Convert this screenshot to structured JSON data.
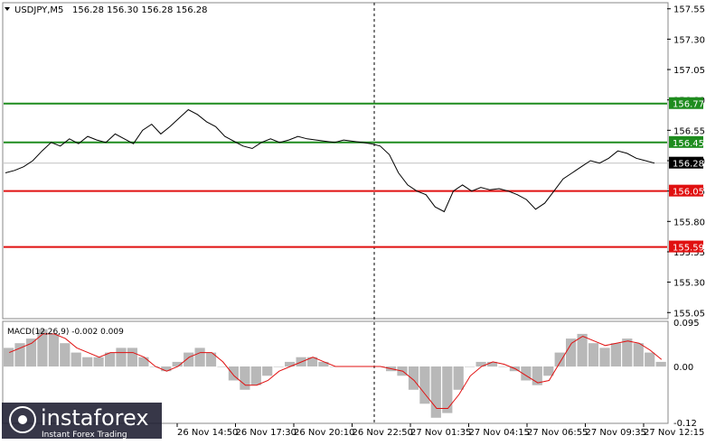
{
  "header": {
    "symbol": "USDJPY,M5",
    "quote": "156.28 156.30 156.28 156.28"
  },
  "macd": {
    "label": "MACD(12,26,9) -0.002 0.009",
    "ticks": [
      "0.095",
      "0.00",
      "-0.12"
    ]
  },
  "price_axis": {
    "ticks": [
      "157.55",
      "157.30",
      "157.05",
      "156.80",
      "156.55",
      "156.30",
      "156.05",
      "155.80",
      "155.55",
      "155.30",
      "155.05"
    ]
  },
  "levels": [
    {
      "price": 156.77,
      "label": "156.77",
      "color": "#1e8c1e"
    },
    {
      "price": 156.45,
      "label": "156.45",
      "color": "#1e8c1e"
    },
    {
      "price": 156.28,
      "label": "156.28",
      "color": "#000000"
    },
    {
      "price": 156.05,
      "label": "156.05",
      "color": "#e01010"
    },
    {
      "price": 155.59,
      "label": "155.59",
      "color": "#e01010"
    }
  ],
  "time_axis": {
    "labels": [
      "26 Nov 14:50",
      "26 Nov 17:30",
      "26 Nov 20:10",
      "26 Nov 22:50",
      "27 Nov 01:35",
      "27 Nov 04:15",
      "27 Nov 06:55",
      "27 Nov 09:35",
      "27 Nov 12:15"
    ]
  },
  "watermark": {
    "brand": "instaforex",
    "tagline": "Instant Forex Trading"
  },
  "chart_data": {
    "type": "line",
    "title": "USDJPY,M5",
    "ylim": [
      155.0,
      157.6
    ],
    "series": [
      {
        "values": [
          156.2,
          156.22,
          156.25,
          156.3,
          156.38,
          156.45,
          156.42,
          156.48,
          156.44,
          156.5,
          156.47,
          156.45,
          156.52,
          156.48,
          156.44,
          156.55,
          156.6,
          156.52,
          156.58,
          156.65,
          156.72,
          156.68,
          156.62,
          156.58,
          156.5,
          156.46,
          156.42,
          156.4,
          156.45,
          156.48,
          156.45,
          156.47,
          156.5,
          156.48,
          156.47,
          156.46,
          156.45,
          156.47,
          156.46,
          156.45,
          156.44,
          156.42,
          156.35,
          156.2,
          156.1,
          156.05,
          156.02,
          155.92,
          155.88,
          156.05,
          156.1,
          156.05,
          156.08,
          156.06,
          156.07,
          156.05,
          156.02,
          155.98,
          155.9,
          155.95,
          156.05,
          156.15,
          156.2,
          156.25,
          156.3,
          156.28,
          156.32,
          156.38,
          156.36,
          156.32,
          156.3,
          156.28
        ]
      }
    ],
    "macd": {
      "histogram": [
        0.04,
        0.05,
        0.06,
        0.08,
        0.07,
        0.05,
        0.03,
        0.02,
        0.02,
        0.03,
        0.04,
        0.04,
        0.02,
        0.0,
        -0.01,
        0.01,
        0.03,
        0.04,
        0.03,
        0.0,
        -0.03,
        -0.05,
        -0.04,
        -0.02,
        0.0,
        0.01,
        0.02,
        0.02,
        0.01,
        0.0,
        0.0,
        0.0,
        0.0,
        0.0,
        -0.01,
        -0.02,
        -0.05,
        -0.08,
        -0.11,
        -0.1,
        -0.05,
        0.0,
        0.01,
        0.01,
        0.0,
        -0.01,
        -0.03,
        -0.04,
        -0.02,
        0.03,
        0.06,
        0.07,
        0.05,
        0.04,
        0.05,
        0.06,
        0.05,
        0.03,
        0.01
      ],
      "signal": [
        0.03,
        0.04,
        0.05,
        0.07,
        0.07,
        0.06,
        0.04,
        0.03,
        0.02,
        0.03,
        0.03,
        0.03,
        0.02,
        0.0,
        -0.01,
        0.0,
        0.02,
        0.03,
        0.03,
        0.01,
        -0.02,
        -0.04,
        -0.04,
        -0.03,
        -0.01,
        0.0,
        0.01,
        0.02,
        0.01,
        0.0,
        0.0,
        0.0,
        0.0,
        0.0,
        -0.005,
        -0.01,
        -0.03,
        -0.06,
        -0.09,
        -0.09,
        -0.06,
        -0.02,
        0.0,
        0.01,
        0.005,
        -0.005,
        -0.02,
        -0.035,
        -0.03,
        0.01,
        0.05,
        0.065,
        0.055,
        0.045,
        0.05,
        0.055,
        0.05,
        0.035,
        0.015
      ]
    }
  }
}
